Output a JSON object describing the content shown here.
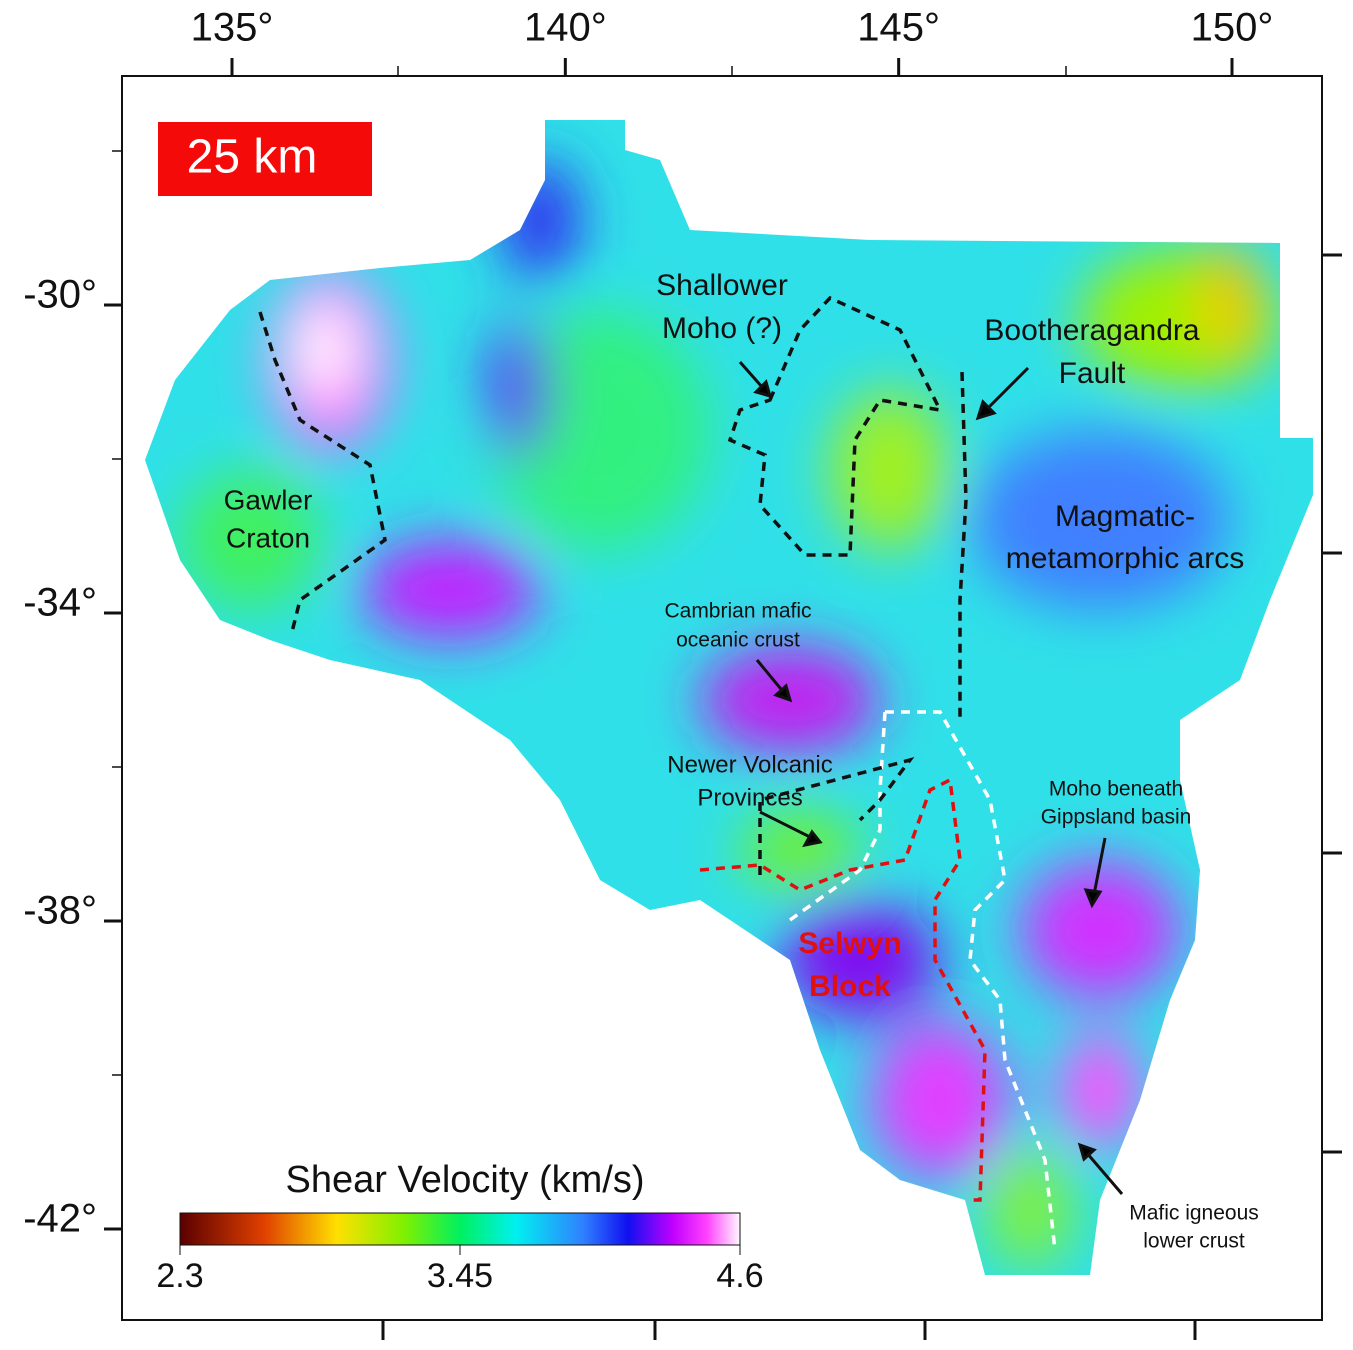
{
  "scale_label": "25 km",
  "lon_ticks": [
    {
      "value": 135,
      "label": "135°"
    },
    {
      "value": 140,
      "label": "140°"
    },
    {
      "value": 145,
      "label": "145°"
    },
    {
      "value": 150,
      "label": "150°"
    }
  ],
  "lat_ticks": [
    {
      "value": -30,
      "label": "-30°"
    },
    {
      "value": -34,
      "label": "-34°"
    },
    {
      "value": -38,
      "label": "-38°"
    },
    {
      "value": -42,
      "label": "-42°"
    }
  ],
  "annotations": [
    {
      "lines": [
        "Shallower",
        "Moho (?)"
      ]
    },
    {
      "lines": [
        "Bootheragandra",
        "Fault"
      ]
    },
    {
      "lines": [
        "Gawler",
        "Craton"
      ]
    },
    {
      "lines": [
        "Magmatic-",
        "metamorphic arcs"
      ]
    },
    {
      "lines": [
        "Cambrian mafic",
        "oceanic crust"
      ]
    },
    {
      "lines": [
        "Newer Volcanic",
        "Provinces"
      ]
    },
    {
      "lines": [
        "Moho beneath",
        "Gippsland basin"
      ]
    },
    {
      "lines": [
        "Selwyn",
        "Block"
      ]
    },
    {
      "lines": [
        "Mafic igneous",
        "lower crust"
      ]
    }
  ],
  "colorbar": {
    "title": "Shear Velocity (km/s)",
    "range": [
      2.3,
      4.6
    ],
    "ticks": [
      2.3,
      3.45,
      4.6
    ]
  }
}
